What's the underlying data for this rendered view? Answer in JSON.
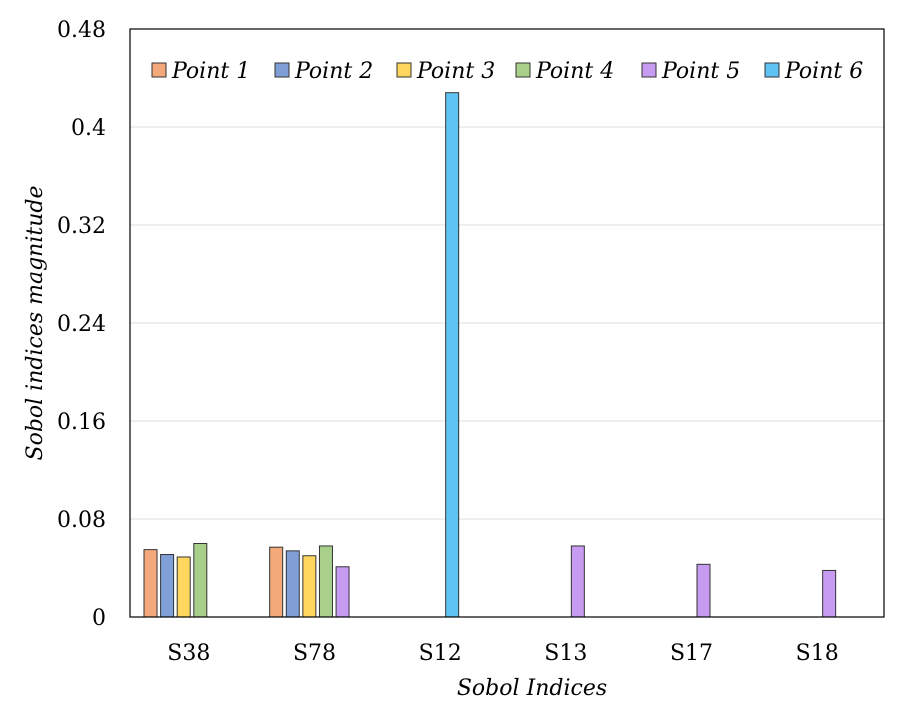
{
  "chart_data": {
    "type": "bar",
    "title": "",
    "xlabel": "Sobol Indices",
    "ylabel": "Sobol indices magnitude",
    "ylim": [
      0,
      0.48
    ],
    "yticks": [
      0,
      0.08,
      0.16,
      0.24,
      0.32,
      0.4,
      0.48
    ],
    "ytick_labels": [
      "0",
      "0.08",
      "0.16",
      "0.24",
      "0.32",
      "0.4",
      "0.48"
    ],
    "categories": [
      "S38",
      "S78",
      "S12",
      "S13",
      "S17",
      "S18"
    ],
    "grid": "horizontal",
    "legend_position": "top",
    "series": [
      {
        "name": "Point 1",
        "color": "#f4a97a",
        "values": [
          0.055,
          0.057,
          null,
          null,
          null,
          null
        ]
      },
      {
        "name": "Point 2",
        "color": "#7f9fd6",
        "values": [
          0.051,
          0.054,
          null,
          null,
          null,
          null
        ]
      },
      {
        "name": "Point 3",
        "color": "#ffd75e",
        "values": [
          0.049,
          0.05,
          null,
          null,
          null,
          null
        ]
      },
      {
        "name": "Point 4",
        "color": "#a8d08a",
        "values": [
          0.06,
          0.058,
          null,
          null,
          null,
          null
        ]
      },
      {
        "name": "Point 5",
        "color": "#c89bf2",
        "values": [
          null,
          0.041,
          null,
          0.058,
          0.043,
          0.038
        ]
      },
      {
        "name": "Point 6",
        "color": "#5fc4f2",
        "values": [
          null,
          null,
          0.428,
          null,
          null,
          null
        ]
      }
    ]
  }
}
